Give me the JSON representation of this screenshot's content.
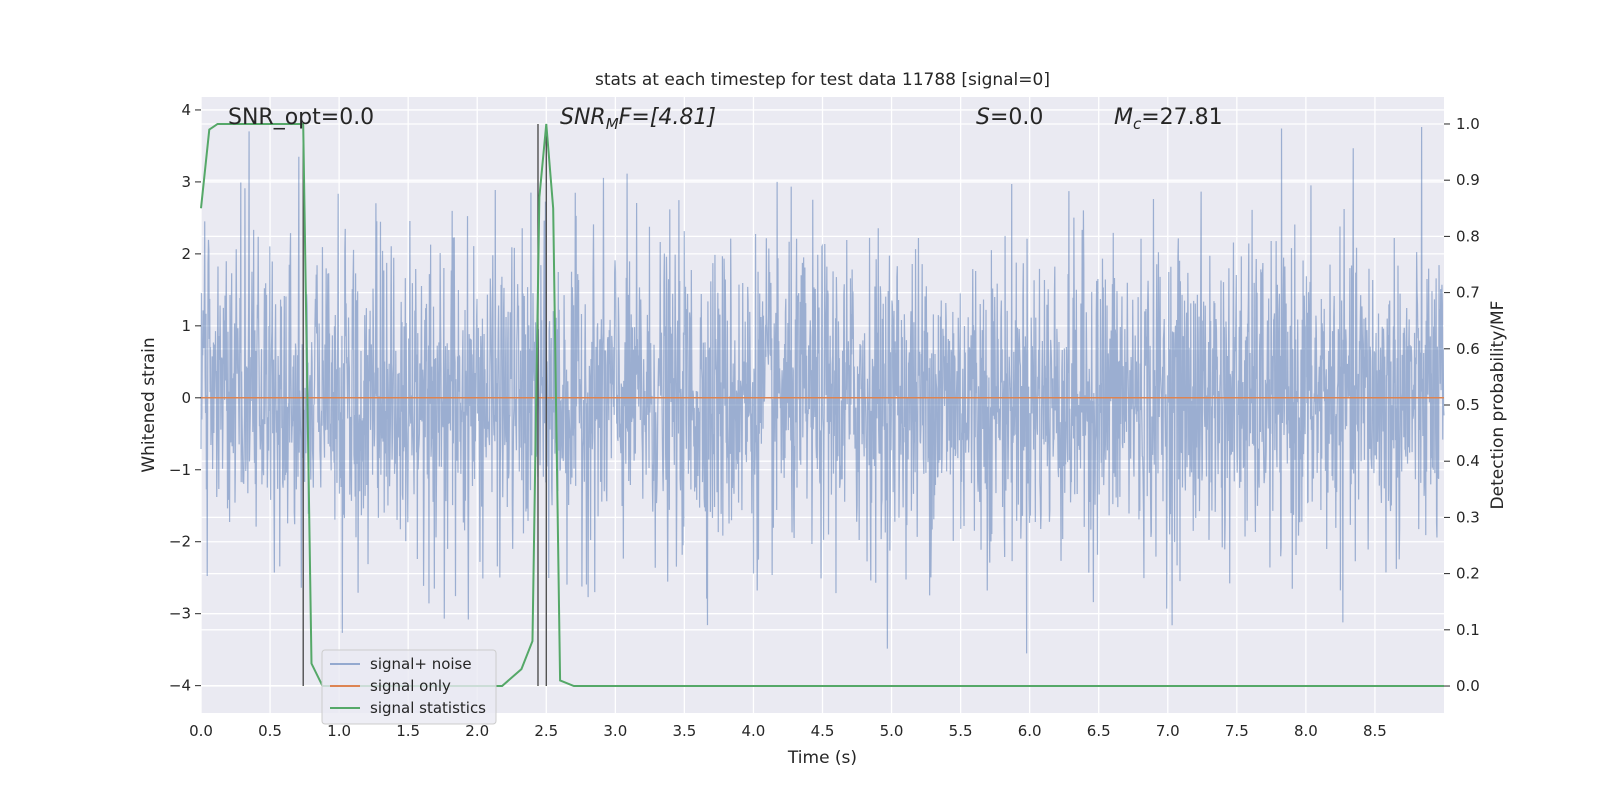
{
  "chart_data": {
    "type": "line",
    "title": "stats at each timestep for test data 11788 [signal=0]",
    "xlabel": "Time (s)",
    "ylabel": "Whitened strain",
    "y2label": "Detection probability/MF",
    "xlim": [
      0.0,
      9.0
    ],
    "ylim": [
      -4.38,
      4.18
    ],
    "y2lim": [
      -0.048,
      1.048
    ],
    "xticks": [
      "0.0",
      "0.5",
      "1.0",
      "1.5",
      "2.0",
      "2.5",
      "3.0",
      "3.5",
      "4.0",
      "4.5",
      "5.0",
      "5.5",
      "6.0",
      "6.5",
      "7.0",
      "7.5",
      "8.0",
      "8.5"
    ],
    "yticks": [
      "4",
      "3",
      "2",
      "1",
      "0",
      "−1",
      "−2",
      "−3",
      "−4"
    ],
    "y2ticks": [
      "1.0",
      "0.9",
      "0.8",
      "0.7",
      "0.6",
      "0.5",
      "0.4",
      "0.3",
      "0.2",
      "0.1",
      "0.0"
    ],
    "grid": true,
    "legend_position": "lower-left",
    "annotations": {
      "snr_opt": "SNR_opt=0.0",
      "snr_mf_main": "SNR",
      "snr_mf_sub": "M",
      "snr_mf_rest": "F=[4.81]",
      "s_main": "S",
      "s_rest": "=0.0",
      "mc_main": "M",
      "mc_sub": "c",
      "mc_rest": "=27.81"
    },
    "series": [
      {
        "name": "signal+ noise",
        "color": "#4c72b0",
        "note_values": "dense whitened noise, approx Gaussian, extremes near ±3.5",
        "extremes": [
          3.82,
          -3.9
        ]
      },
      {
        "name": "signal only",
        "color": "#dd8452",
        "x": [
          0.0,
          9.0
        ],
        "y": [
          0.0,
          0.0
        ]
      },
      {
        "name": "signal statistics",
        "color": "#55a868",
        "axis": "right",
        "x": [
          0.0,
          0.06,
          0.12,
          0.2,
          0.3,
          0.4,
          0.5,
          0.6,
          0.7,
          0.74,
          0.8,
          0.88,
          1.0,
          1.2,
          1.5,
          1.8,
          2.0,
          2.18,
          2.32,
          2.4,
          2.45,
          2.5,
          2.55,
          2.6,
          2.7,
          3.0,
          4.0,
          5.0,
          6.0,
          7.0,
          8.0,
          9.0
        ],
        "y": [
          0.85,
          0.99,
          1.0,
          1.0,
          1.0,
          1.0,
          1.0,
          1.0,
          1.0,
          1.0,
          0.04,
          0.0,
          0.0,
          0.0,
          0.0,
          0.0,
          0.0,
          0.0,
          0.03,
          0.08,
          0.87,
          1.0,
          0.85,
          0.01,
          0.0,
          0.0,
          0.0,
          0.0,
          0.0,
          0.0,
          0.0,
          0.0
        ]
      }
    ],
    "vlines": [
      {
        "x": 0.74,
        "y2_from": 0.0,
        "y2_to": 1.0
      },
      {
        "x": 2.44,
        "y2_from": 0.0,
        "y2_to": 1.0
      },
      {
        "x": 2.5,
        "y2_from": 0.0,
        "y2_to": 1.0
      }
    ]
  }
}
